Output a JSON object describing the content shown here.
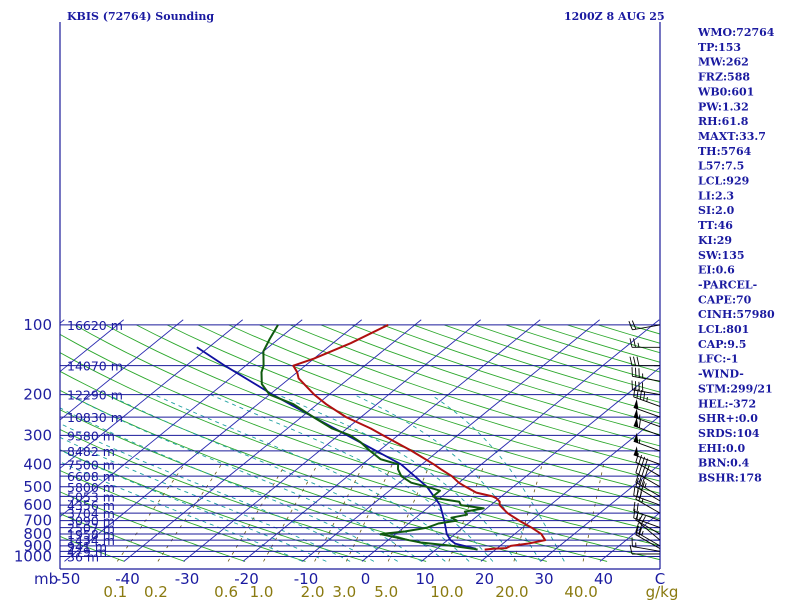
{
  "chart_data": {
    "type": "skew-t sounding",
    "title": "KBIS (72764) Sounding",
    "time": "1200Z  8 AUG 25",
    "pressure_labels": [
      "100",
      "200",
      "300",
      "400",
      "500",
      "600",
      "700",
      "800",
      "900",
      "1000",
      "mb"
    ],
    "pressure_values": [
      100,
      200,
      300,
      400,
      500,
      600,
      700,
      800,
      900,
      1000
    ],
    "heights": [
      {
        "p": 100,
        "label": "16620 m"
      },
      {
        "p": 150,
        "label": "14070 m"
      },
      {
        "p": 200,
        "label": "12290 m"
      },
      {
        "p": 250,
        "label": "10830 m"
      },
      {
        "p": 300,
        "label": "9580 m"
      },
      {
        "p": 350,
        "label": "8482 m"
      },
      {
        "p": 400,
        "label": "7500 m"
      },
      {
        "p": 450,
        "label": "6608 m"
      },
      {
        "p": 500,
        "label": "5800 m"
      },
      {
        "p": 550,
        "label": "5053 m"
      },
      {
        "p": 600,
        "label": "4356 m"
      },
      {
        "p": 650,
        "label": "3704 m"
      },
      {
        "p": 700,
        "label": "3090 m"
      },
      {
        "p": 750,
        "label": "2507 m"
      },
      {
        "p": 800,
        "label": "1958 m"
      },
      {
        "p": 850,
        "label": "1434 m"
      },
      {
        "p": 900,
        "label": "941 m"
      },
      {
        "p": 950,
        "label": "479 m"
      },
      {
        "p": 1000,
        "label": "36 m"
      }
    ],
    "temp_labels": [
      "-50",
      "-40",
      "-30",
      "-20",
      "-10",
      "0",
      "10",
      "20",
      "30",
      "40",
      "C"
    ],
    "temp_values": [
      -50,
      -40,
      -30,
      -20,
      -10,
      0,
      10,
      20,
      30,
      40
    ],
    "mixing_ratio_labels": [
      "0.1",
      "0.2",
      "0.6",
      "1.0",
      "2.0",
      "3.0",
      "5.0",
      "10.0",
      "20.0",
      "40.0",
      "g/kg"
    ],
    "mixing_ratio_values": [
      0.1,
      0.2,
      0.6,
      1.0,
      2.0,
      3.0,
      5.0,
      10.0,
      20.0,
      40.0
    ],
    "temperature": [
      [
        934,
        18.2
      ],
      [
        925,
        19.4
      ],
      [
        920,
        21.5
      ],
      [
        900,
        21.8
      ],
      [
        880,
        24.2
      ],
      [
        850,
        26.4
      ],
      [
        800,
        24.5
      ],
      [
        750,
        21.5
      ],
      [
        700,
        18.0
      ],
      [
        650,
        14.5
      ],
      [
        600,
        11.5
      ],
      [
        580,
        10.8
      ],
      [
        560,
        9.5
      ],
      [
        550,
        8.5
      ],
      [
        530,
        5.0
      ],
      [
        500,
        2.0
      ],
      [
        480,
        0.0
      ],
      [
        450,
        -2.5
      ],
      [
        420,
        -5.8
      ],
      [
        400,
        -8.0
      ],
      [
        350,
        -14.5
      ],
      [
        300,
        -22.5
      ],
      [
        280,
        -26.0
      ],
      [
        250,
        -32.5
      ],
      [
        220,
        -38.5
      ],
      [
        200,
        -42.5
      ],
      [
        170,
        -48.5
      ],
      [
        160,
        -50.0
      ],
      [
        150,
        -52.0
      ],
      [
        140,
        -50.0
      ],
      [
        120,
        -47.0
      ],
      [
        100,
        -44.5
      ]
    ],
    "dewpoint": [
      [
        934,
        17.0
      ],
      [
        925,
        16.0
      ],
      [
        900,
        12.0
      ],
      [
        870,
        6.0
      ],
      [
        850,
        3.5
      ],
      [
        800,
        -2.5
      ],
      [
        780,
        1.0
      ],
      [
        750,
        4.0
      ],
      [
        720,
        5.0
      ],
      [
        700,
        7.5
      ],
      [
        680,
        6.0
      ],
      [
        660,
        8.0
      ],
      [
        640,
        7.0
      ],
      [
        620,
        9.5
      ],
      [
        600,
        5.0
      ],
      [
        580,
        4.0
      ],
      [
        560,
        -0.5
      ],
      [
        550,
        -1.5
      ],
      [
        520,
        -1.5
      ],
      [
        500,
        -4.5
      ],
      [
        480,
        -8.0
      ],
      [
        450,
        -11.0
      ],
      [
        420,
        -13.0
      ],
      [
        400,
        -14.0
      ],
      [
        380,
        -18.0
      ],
      [
        350,
        -21.5
      ],
      [
        320,
        -25.0
      ],
      [
        300,
        -28.0
      ],
      [
        280,
        -32.5
      ],
      [
        250,
        -38.0
      ],
      [
        220,
        -44.0
      ],
      [
        200,
        -50.0
      ],
      [
        180,
        -53.5
      ],
      [
        160,
        -56.0
      ],
      [
        150,
        -57.0
      ],
      [
        130,
        -60.0
      ],
      [
        115,
        -61.5
      ],
      [
        100,
        -63.0
      ]
    ],
    "parcel": [
      [
        925,
        16.5
      ],
      [
        880,
        12.0
      ],
      [
        850,
        10.5
      ],
      [
        800,
        8.6
      ],
      [
        700,
        5.4
      ],
      [
        600,
        1.5
      ],
      [
        500,
        -4.5
      ],
      [
        400,
        -13.5
      ],
      [
        300,
        -28.5
      ],
      [
        250,
        -38.0
      ],
      [
        200,
        -49.5
      ],
      [
        150,
        -63.5
      ],
      [
        125,
        -72.0
      ]
    ],
    "wind_barbs": [
      {
        "p": 975,
        "dir": 270,
        "spd": 10
      },
      {
        "p": 950,
        "dir": 280,
        "spd": 15
      },
      {
        "p": 925,
        "dir": 300,
        "spd": 20
      },
      {
        "p": 900,
        "dir": 300,
        "spd": 25
      },
      {
        "p": 850,
        "dir": 310,
        "spd": 20
      },
      {
        "p": 800,
        "dir": 300,
        "spd": 15
      },
      {
        "p": 750,
        "dir": 290,
        "spd": 15
      },
      {
        "p": 700,
        "dir": 290,
        "spd": 20
      },
      {
        "p": 650,
        "dir": 300,
        "spd": 25
      },
      {
        "p": 600,
        "dir": 290,
        "spd": 30
      },
      {
        "p": 575,
        "dir": 300,
        "spd": 30
      },
      {
        "p": 550,
        "dir": 300,
        "spd": 35
      },
      {
        "p": 500,
        "dir": 300,
        "spd": 40
      },
      {
        "p": 450,
        "dir": 300,
        "spd": 45
      },
      {
        "p": 400,
        "dir": 290,
        "spd": 50
      },
      {
        "p": 350,
        "dir": 290,
        "spd": 55
      },
      {
        "p": 300,
        "dir": 290,
        "spd": 60
      },
      {
        "p": 275,
        "dir": 290,
        "spd": 55
      },
      {
        "p": 250,
        "dir": 290,
        "spd": 50
      },
      {
        "p": 225,
        "dir": 290,
        "spd": 45
      },
      {
        "p": 200,
        "dir": 280,
        "spd": 40
      },
      {
        "p": 175,
        "dir": 280,
        "spd": 35
      },
      {
        "p": 150,
        "dir": 270,
        "spd": 30
      },
      {
        "p": 125,
        "dir": 270,
        "spd": 25
      },
      {
        "p": 100,
        "dir": 260,
        "spd": 20
      }
    ],
    "indices": [
      "WMO:72764",
      "TP:153",
      "MW:262",
      "FRZ:588",
      "WB0:601",
      "PW:1.32",
      "RH:61.8",
      "MAXT:33.7",
      "TH:5764",
      "L57:7.5",
      "LCL:929",
      "LI:2.3",
      "SI:2.0",
      "TT:46",
      "KI:29",
      "SW:135",
      "EI:0.6",
      "-PARCEL-",
      "CAPE:70",
      "CINH:57980",
      "LCL:801",
      "CAP:9.5",
      "LFC:-1",
      "-WIND-",
      "STM:299/21",
      "HEL:-372",
      "SHR+:0.0",
      "SRDS:104",
      "EHI:0.0",
      "BRN:0.4",
      "BSHR:178"
    ],
    "colors": {
      "isobar": "#1a1a9a",
      "isotherm": "#2b2bb0",
      "dry_adiabat": "#2da82d",
      "moist_adiabat": "#1fa0a0",
      "mixing_ratio": "#6a5a10",
      "temperature": "#b01010",
      "dewpoint": "#0f5a0f",
      "parcel": "#1010a0",
      "text": "#1a1aa0",
      "mixing_ratio_text": "#8a7a10",
      "barb": "#000000"
    }
  }
}
